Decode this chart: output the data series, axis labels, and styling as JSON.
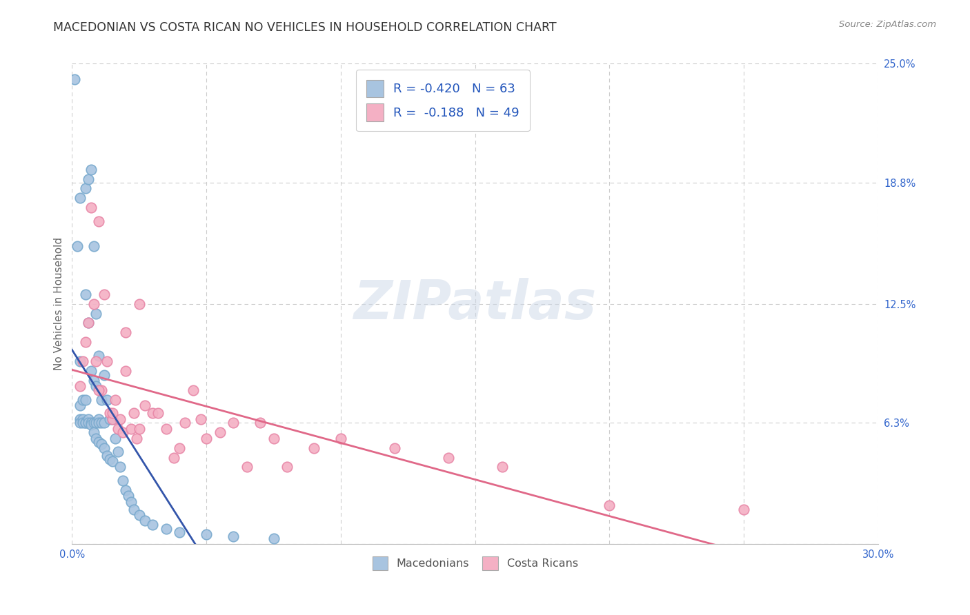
{
  "title": "MACEDONIAN VS COSTA RICAN NO VEHICLES IN HOUSEHOLD CORRELATION CHART",
  "source": "Source: ZipAtlas.com",
  "ylabel": "No Vehicles in Household",
  "xlim": [
    0.0,
    0.3
  ],
  "ylim": [
    0.0,
    0.25
  ],
  "xtick_vals": [
    0.0,
    0.05,
    0.1,
    0.15,
    0.2,
    0.25,
    0.3
  ],
  "xtick_labels": [
    "0.0%",
    "",
    "",
    "",
    "",
    "",
    "30.0%"
  ],
  "ytick_vals": [
    0.0,
    0.063,
    0.125,
    0.188,
    0.25
  ],
  "ytick_labels": [
    "",
    "6.3%",
    "12.5%",
    "18.8%",
    "25.0%"
  ],
  "grid_color": "#cccccc",
  "background_color": "#ffffff",
  "macedonian_color": "#a8c4e0",
  "macedonian_edge_color": "#7aaace",
  "macedonian_line_color": "#3355aa",
  "costa_rican_color": "#f4b0c4",
  "costa_rican_edge_color": "#e888a8",
  "costa_rican_line_color": "#e06888",
  "legend_mac_label": "R = -0.420   N = 63",
  "legend_cr_label": "R =  -0.188   N = 49",
  "legend_mac_bottom": "Macedonians",
  "legend_cr_bottom": "Costa Ricans",
  "watermark": "ZIPatlas",
  "title_fontsize": 12.5,
  "source_fontsize": 9.5,
  "label_fontsize": 11,
  "tick_fontsize": 10.5,
  "legend_fontsize": 13,
  "marker_size": 110,
  "mac_x": [
    0.001,
    0.002,
    0.003,
    0.003,
    0.003,
    0.003,
    0.003,
    0.004,
    0.004,
    0.004,
    0.005,
    0.005,
    0.005,
    0.005,
    0.005,
    0.006,
    0.006,
    0.006,
    0.006,
    0.007,
    0.007,
    0.007,
    0.007,
    0.008,
    0.008,
    0.008,
    0.008,
    0.009,
    0.009,
    0.009,
    0.009,
    0.01,
    0.01,
    0.01,
    0.01,
    0.011,
    0.011,
    0.011,
    0.012,
    0.012,
    0.012,
    0.013,
    0.013,
    0.014,
    0.014,
    0.015,
    0.015,
    0.016,
    0.017,
    0.018,
    0.019,
    0.02,
    0.021,
    0.022,
    0.023,
    0.025,
    0.027,
    0.03,
    0.035,
    0.04,
    0.05,
    0.06,
    0.075
  ],
  "mac_y": [
    0.242,
    0.155,
    0.18,
    0.095,
    0.072,
    0.065,
    0.063,
    0.075,
    0.065,
    0.063,
    0.185,
    0.13,
    0.075,
    0.063,
    0.063,
    0.19,
    0.115,
    0.065,
    0.063,
    0.195,
    0.09,
    0.063,
    0.062,
    0.155,
    0.085,
    0.063,
    0.058,
    0.12,
    0.082,
    0.063,
    0.055,
    0.098,
    0.065,
    0.063,
    0.053,
    0.075,
    0.063,
    0.052,
    0.088,
    0.063,
    0.05,
    0.075,
    0.046,
    0.065,
    0.044,
    0.065,
    0.043,
    0.055,
    0.048,
    0.04,
    0.033,
    0.028,
    0.025,
    0.022,
    0.018,
    0.015,
    0.012,
    0.01,
    0.008,
    0.006,
    0.005,
    0.004,
    0.003
  ],
  "cr_x": [
    0.003,
    0.004,
    0.005,
    0.006,
    0.007,
    0.008,
    0.009,
    0.01,
    0.011,
    0.012,
    0.013,
    0.014,
    0.015,
    0.016,
    0.017,
    0.018,
    0.019,
    0.02,
    0.022,
    0.023,
    0.024,
    0.025,
    0.027,
    0.03,
    0.032,
    0.035,
    0.038,
    0.04,
    0.042,
    0.045,
    0.048,
    0.05,
    0.055,
    0.06,
    0.065,
    0.07,
    0.075,
    0.08,
    0.09,
    0.1,
    0.12,
    0.14,
    0.16,
    0.2,
    0.25,
    0.01,
    0.015,
    0.02,
    0.025
  ],
  "cr_y": [
    0.082,
    0.095,
    0.105,
    0.115,
    0.175,
    0.125,
    0.095,
    0.168,
    0.08,
    0.13,
    0.095,
    0.068,
    0.065,
    0.075,
    0.06,
    0.065,
    0.058,
    0.09,
    0.06,
    0.068,
    0.055,
    0.125,
    0.072,
    0.068,
    0.068,
    0.06,
    0.045,
    0.05,
    0.063,
    0.08,
    0.065,
    0.055,
    0.058,
    0.063,
    0.04,
    0.063,
    0.055,
    0.04,
    0.05,
    0.055,
    0.05,
    0.045,
    0.04,
    0.02,
    0.018,
    0.08,
    0.068,
    0.11,
    0.06
  ],
  "mac_line_x": [
    0.0,
    0.075
  ],
  "cr_line_x": [
    0.0,
    0.3
  ]
}
